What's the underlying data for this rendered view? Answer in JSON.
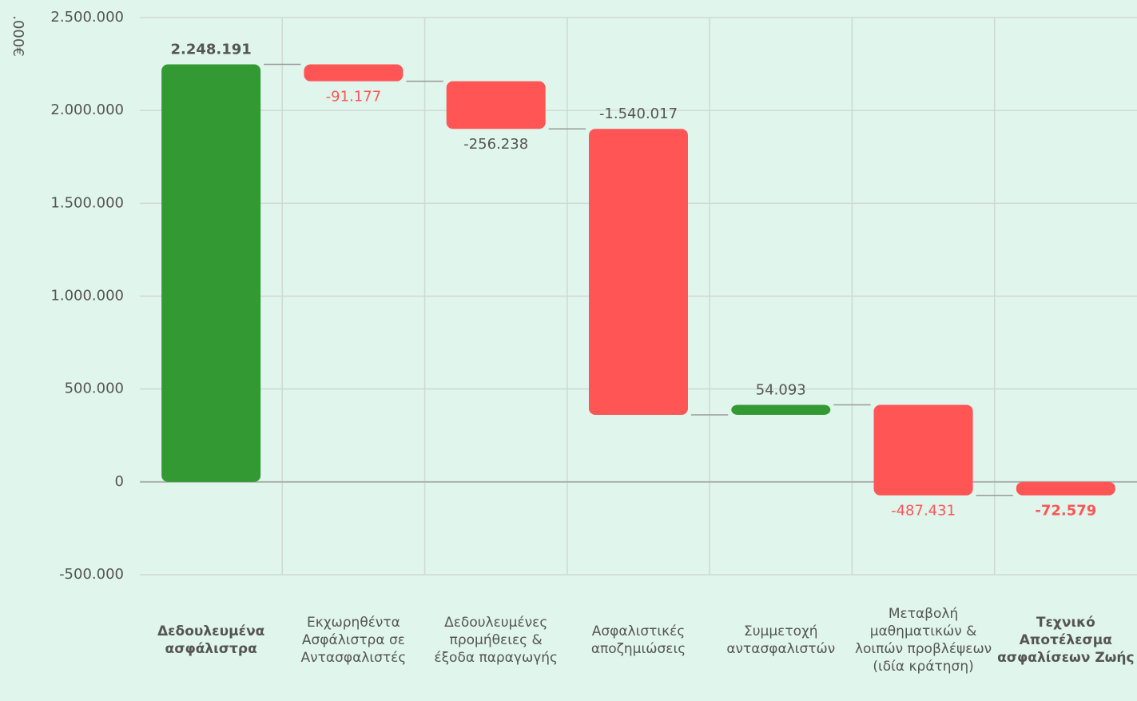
{
  "chart_data": {
    "type": "waterfall",
    "y_label": ".000€",
    "categories": [
      "Δεδουλευμένα ασφάλιστρα",
      "Εκχωρηθέντα Ασφάλιστρα σε Αντασφαλιστές",
      "Δεδουλευμένες προμήθειες & έξοδα παραγωγής",
      "Ασφαλιστικές αποζημιώσεις",
      "Συμμετοχή αντασφαλιστών",
      "Μεταβολή μαθηματικών & λοιπών προβλέψεων (ιδία κράτηση)",
      "Τεχνικό Αποτέλεσμα ασφαλίσεων Ζωής"
    ],
    "measure": [
      "absolute",
      "relative",
      "relative",
      "relative",
      "relative",
      "relative",
      "total"
    ],
    "values": [
      2248191,
      -91177,
      -256238,
      -1540017,
      54093,
      -487431,
      -72579
    ],
    "value_labels": [
      "2.248.191",
      "-91.177",
      "-256.238",
      "-1.540.017",
      "54.093",
      "-487.431",
      "-72.579"
    ],
    "label_colors": [
      "#555555",
      "#ff5555",
      "#555555",
      "#555555",
      "#555555",
      "#ff5555",
      "#ff5555"
    ],
    "increase_color": "#339933",
    "decrease_color": "#ff5555",
    "ylim": [
      -500000,
      2500000
    ],
    "yticks": [
      {
        "value": -500000,
        "label": "-500.000"
      },
      0,
      {
        "value": 500000,
        "label": "500.000"
      },
      {
        "value": 1000000,
        "label": "1.000.000"
      },
      {
        "value": 1500000,
        "label": "1.500.000"
      },
      {
        "value": 2000000,
        "label": "2.000.000"
      },
      {
        "value": 2500000,
        "label": "2.500.000"
      }
    ],
    "grid": true
  }
}
